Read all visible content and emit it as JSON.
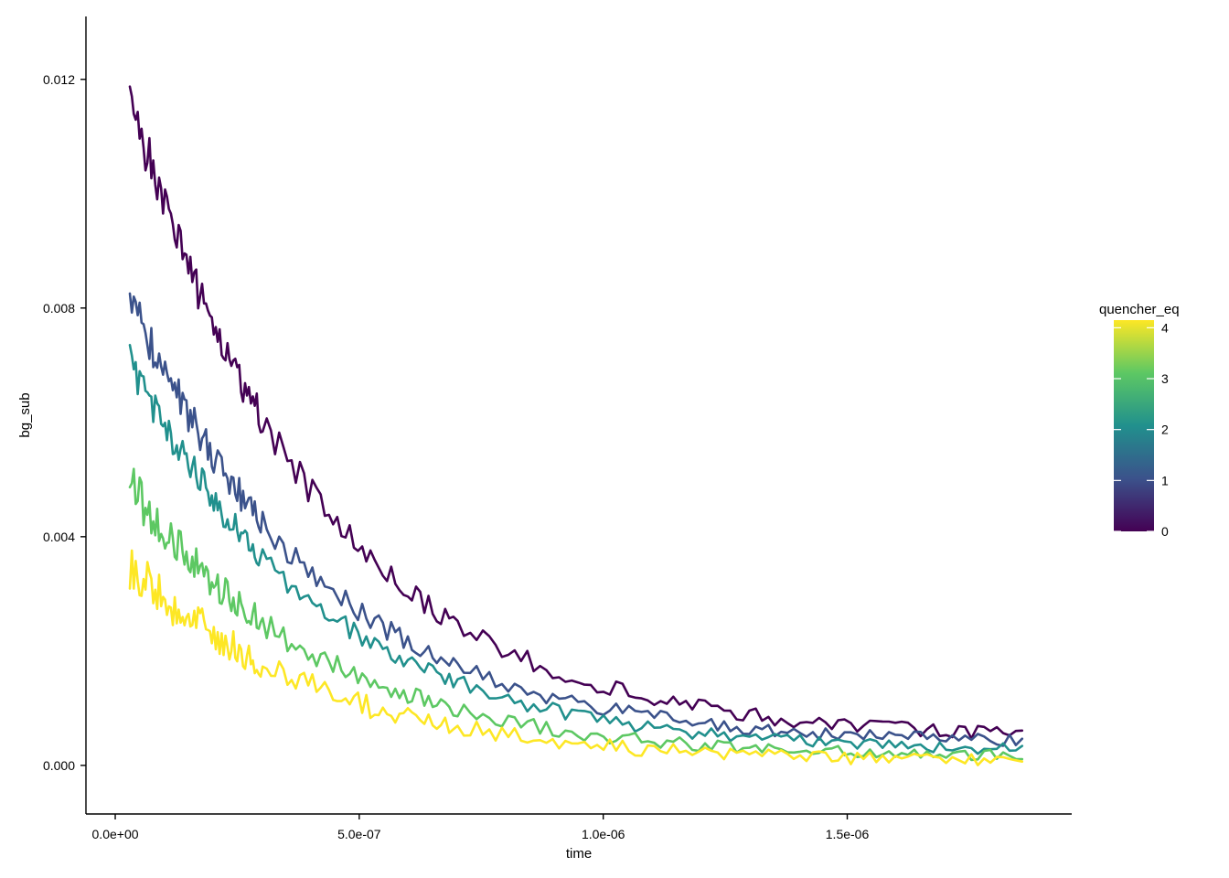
{
  "chart_data": {
    "type": "line",
    "title": "",
    "xlabel": "time",
    "ylabel": "bg_sub",
    "xlim": [
      -6e-08,
      1.96e-06
    ],
    "ylim": [
      -0.00085,
      0.0131
    ],
    "x_ticks": [
      {
        "value": 0,
        "label": "0.0e+00"
      },
      {
        "value": 5e-07,
        "label": "5.0e-07"
      },
      {
        "value": 1e-06,
        "label": "1.0e-06"
      },
      {
        "value": 1.5e-06,
        "label": "1.5e-06"
      }
    ],
    "y_ticks": [
      {
        "value": 0,
        "label": "0.000"
      },
      {
        "value": 0.004,
        "label": "0.004"
      },
      {
        "value": 0.008,
        "label": "0.008"
      },
      {
        "value": 0.012,
        "label": "0.012"
      }
    ],
    "x_start": 3e-08,
    "x_end": 1.86e-06,
    "decay_tau": 3.9e-07,
    "legend": {
      "title": "quencher_eq",
      "position": "right",
      "range": [
        0,
        4.15
      ],
      "ticks": [
        {
          "value": 0,
          "label": "0"
        },
        {
          "value": 1,
          "label": "1"
        },
        {
          "value": 2,
          "label": "2"
        },
        {
          "value": 3,
          "label": "3"
        },
        {
          "value": 4,
          "label": "4"
        }
      ],
      "colors": [
        "#440154",
        "#3b528b",
        "#21908d",
        "#5dc863",
        "#fde725"
      ]
    },
    "series": [
      {
        "name": "0",
        "quencher_eq": 0,
        "color": "#440154",
        "y0": 0.0117,
        "tail": 0.00045,
        "noise_early": 0.00045,
        "noise_late": 0.00012
      },
      {
        "name": "1",
        "quencher_eq": 1,
        "color": "#3b528b",
        "y0": 0.0082,
        "tail": 0.00035,
        "noise_early": 0.0004,
        "noise_late": 0.00011
      },
      {
        "name": "2",
        "quencher_eq": 2,
        "color": "#21908d",
        "y0": 0.0071,
        "tail": 0.00022,
        "noise_early": 0.00035,
        "noise_late": 0.0001
      },
      {
        "name": "3",
        "quencher_eq": 3,
        "color": "#5dc863",
        "y0": 0.0049,
        "tail": 0.00012,
        "noise_early": 0.0004,
        "noise_late": 0.0001
      },
      {
        "name": "4",
        "quencher_eq": 4,
        "color": "#fde725",
        "y0": 0.0035,
        "tail": 5e-05,
        "noise_early": 0.00045,
        "noise_late": 0.0001
      }
    ]
  }
}
